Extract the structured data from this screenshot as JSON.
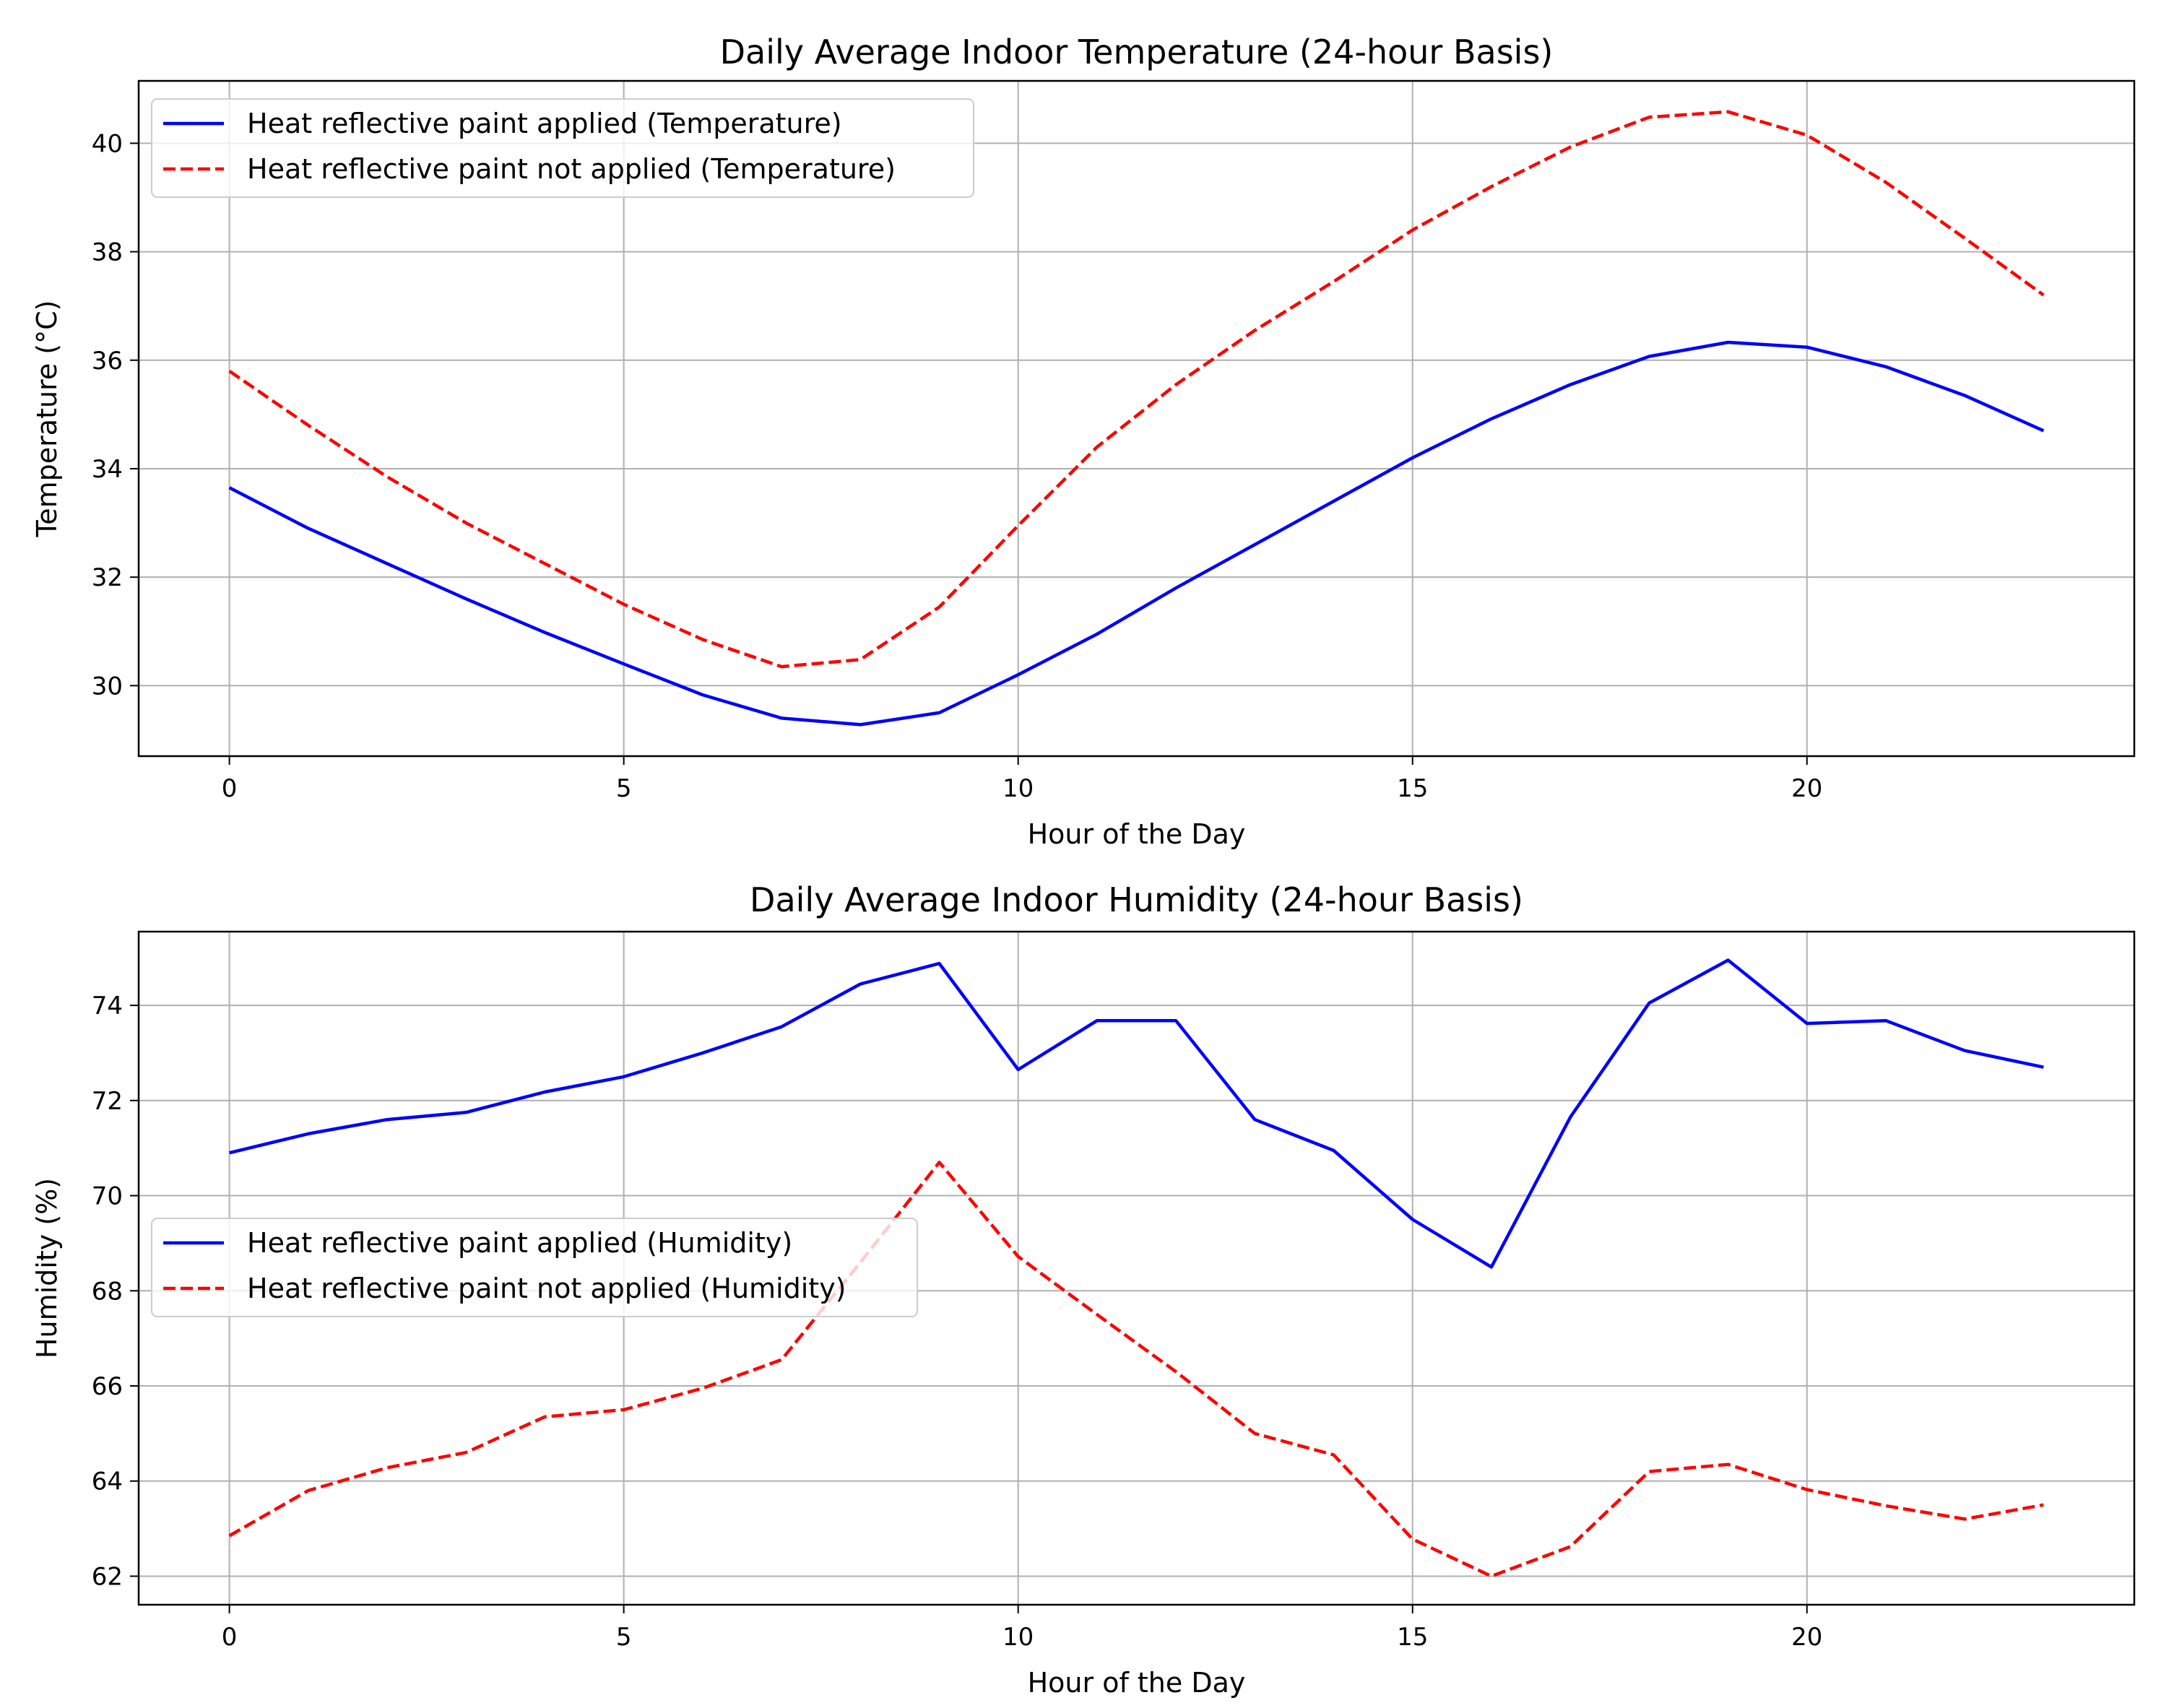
{
  "chart_data": [
    {
      "type": "line",
      "title": "Daily Average Indoor Temperature (24-hour Basis)",
      "xlabel": "Hour of the Day",
      "ylabel": "Temperature (°C)",
      "xlim": [
        -1.15,
        24.15
      ],
      "ylim": [
        28.7,
        41.15
      ],
      "xticks": [
        0,
        5,
        10,
        15,
        20
      ],
      "yticks": [
        30,
        32,
        34,
        36,
        38,
        40
      ],
      "grid": true,
      "legend_position": "top-left",
      "x": [
        0,
        1,
        2,
        3,
        4,
        5,
        6,
        7,
        8,
        9,
        10,
        11,
        12,
        13,
        14,
        15,
        16,
        17,
        18,
        19,
        20,
        21,
        22,
        23
      ],
      "series": [
        {
          "name": "Heat reflective paint applied (Temperature)",
          "color": "#0000ff",
          "style": "solid",
          "values": [
            33.65,
            32.9,
            32.25,
            31.6,
            30.98,
            30.4,
            29.83,
            29.4,
            29.28,
            29.5,
            30.2,
            30.95,
            31.8,
            32.6,
            33.4,
            34.2,
            34.92,
            35.55,
            36.07,
            36.33,
            36.24,
            35.88,
            35.35,
            34.7
          ]
        },
        {
          "name": "Heat reflective paint not applied (Temperature)",
          "color": "#ff0000",
          "style": "dashed",
          "values": [
            35.8,
            34.8,
            33.85,
            33.0,
            32.25,
            31.5,
            30.85,
            30.35,
            30.48,
            31.45,
            32.95,
            34.4,
            35.55,
            36.55,
            37.45,
            38.4,
            39.2,
            39.93,
            40.48,
            40.58,
            40.15,
            39.28,
            38.25,
            37.2
          ]
        }
      ]
    },
    {
      "type": "line",
      "title": "Daily Average Indoor Humidity (24-hour Basis)",
      "xlabel": "Hour of the Day",
      "ylabel": "Humidity (%)",
      "xlim": [
        -1.15,
        24.15
      ],
      "ylim": [
        61.4,
        75.55
      ],
      "xticks": [
        0,
        5,
        10,
        15,
        20
      ],
      "yticks": [
        62,
        64,
        66,
        68,
        70,
        72,
        74
      ],
      "grid": true,
      "legend_position": "center-left",
      "x": [
        0,
        1,
        2,
        3,
        4,
        5,
        6,
        7,
        8,
        9,
        10,
        11,
        12,
        13,
        14,
        15,
        16,
        17,
        18,
        19,
        20,
        21,
        22,
        23
      ],
      "series": [
        {
          "name": "Heat reflective paint applied (Humidity)",
          "color": "#0000ff",
          "style": "solid",
          "values": [
            70.9,
            71.3,
            71.6,
            71.75,
            72.18,
            72.5,
            73.0,
            73.55,
            74.45,
            74.88,
            72.65,
            73.68,
            73.68,
            71.6,
            70.95,
            69.5,
            68.5,
            71.65,
            74.05,
            74.95,
            73.62,
            73.68,
            73.05,
            72.7
          ]
        },
        {
          "name": "Heat reflective paint not applied (Humidity)",
          "color": "#ff0000",
          "style": "dashed",
          "values": [
            62.85,
            63.8,
            64.28,
            64.6,
            65.35,
            65.5,
            65.95,
            66.55,
            68.6,
            70.7,
            68.72,
            67.5,
            66.3,
            65.0,
            64.55,
            62.78,
            62.0,
            62.62,
            64.2,
            64.35,
            63.82,
            63.48,
            63.2,
            63.5
          ]
        }
      ]
    }
  ]
}
